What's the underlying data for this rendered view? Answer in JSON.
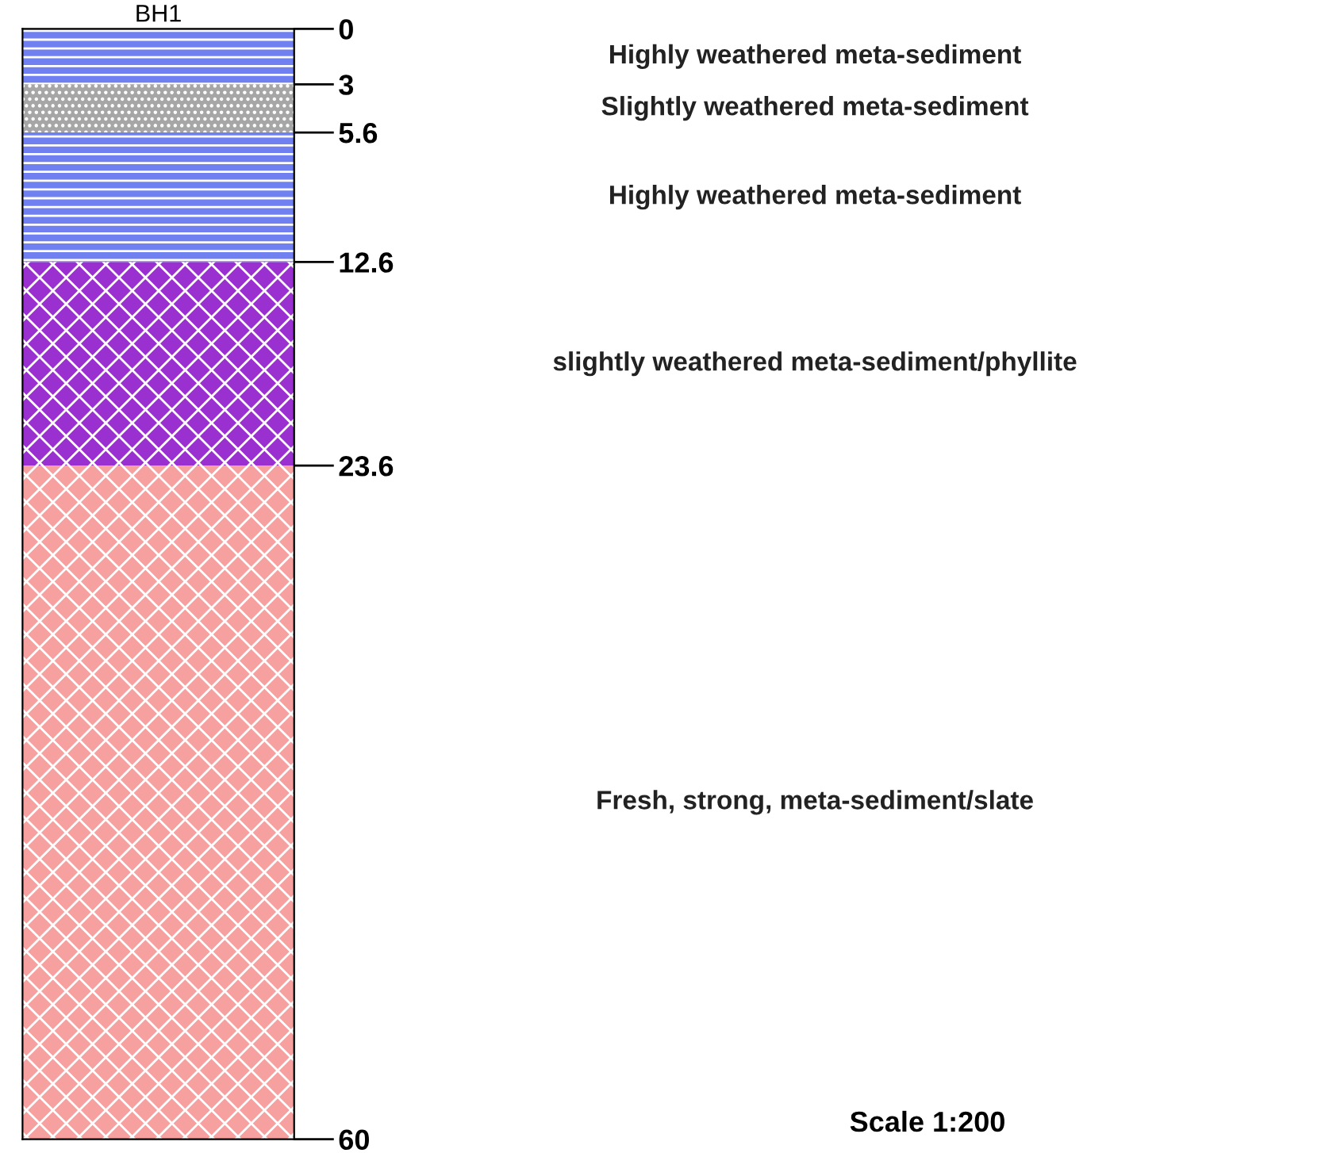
{
  "chart_data": {
    "type": "bar",
    "stacked": true,
    "categories": [
      "BH1"
    ],
    "series": [
      {
        "name": "Highly weathered meta-sediment",
        "color": "#7080f0",
        "values": [
          3
        ]
      },
      {
        "name": "Slightly weathered meta-sediment",
        "color": "#a6a6a6",
        "values": [
          2.6
        ]
      },
      {
        "name": "Highly weathered meta-sediment",
        "color": "#7080f0",
        "values": [
          7
        ]
      },
      {
        "name": "slightly weathered meta-sediment/phyllite",
        "color": "#9b30d0",
        "values": [
          11
        ]
      },
      {
        "name": "Fresh, strong, meta-sediment/slate",
        "color": "#f7a0a0",
        "values": [
          36.4
        ]
      }
    ],
    "ylim": [
      60,
      0
    ],
    "yticks": [
      0,
      3,
      5.6,
      12.6,
      23.6,
      60
    ],
    "annotations": [
      "Scale 1:200"
    ],
    "legend": false,
    "grid": false
  }
}
